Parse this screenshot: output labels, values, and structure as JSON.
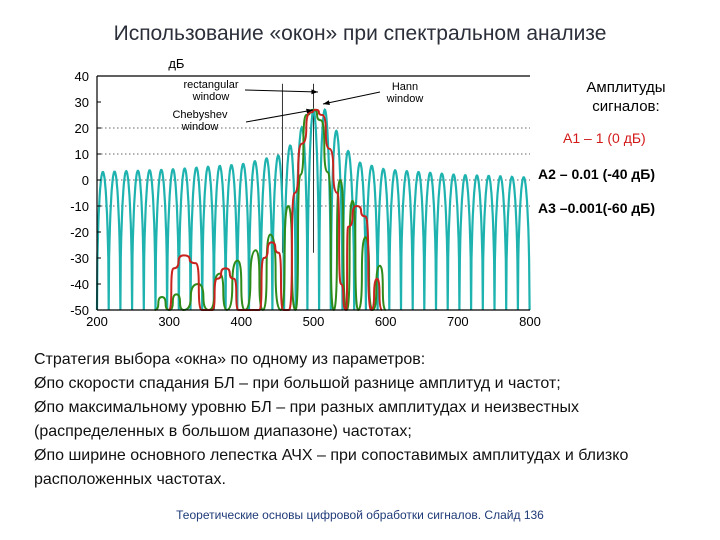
{
  "slide": {
    "title": "Использование «окон» при спектральном анализе",
    "footer": "Теоретические основы цифровой обработки сигналов.  Слайд  136"
  },
  "chart_data": {
    "type": "line",
    "ylabel": "дБ",
    "xlim": [
      200,
      800
    ],
    "ylim": [
      -50,
      40
    ],
    "x_ticks": [
      "200",
      "300",
      "400",
      "500",
      "600",
      "700",
      "800"
    ],
    "y_ticks": [
      "40",
      "30",
      "20",
      "10",
      "0",
      "-10",
      "-20",
      "-30",
      "-40",
      "-50"
    ],
    "grid": "dotted y-lines",
    "annotations": {
      "rectangular": [
        "rectangular",
        "window"
      ],
      "chebyshev": [
        "Chebyshev",
        "window"
      ],
      "hann": [
        "Hann",
        "window"
      ]
    },
    "series": [
      {
        "name": "rectangular window",
        "color": "#1fb3b0",
        "sidelobe_ceiling": [
          [
            200,
            3
          ],
          [
            300,
            4
          ],
          [
            400,
            6
          ],
          [
            460,
            10
          ],
          [
            490,
            23
          ],
          [
            500,
            27
          ],
          [
            508,
            29
          ],
          [
            520,
            26
          ],
          [
            540,
            14
          ],
          [
            560,
            7
          ],
          [
            600,
            4
          ],
          [
            700,
            2
          ],
          [
            800,
            1
          ]
        ]
      },
      {
        "name": "Chebyshev window",
        "color": "#2e8b1a",
        "points": [
          [
            280,
            -50
          ],
          [
            290,
            -45
          ],
          [
            300,
            -50
          ],
          [
            310,
            -44
          ],
          [
            320,
            -50
          ],
          [
            340,
            -40
          ],
          [
            355,
            -50
          ],
          [
            370,
            -36
          ],
          [
            380,
            -50
          ],
          [
            395,
            -31
          ],
          [
            405,
            -50
          ],
          [
            420,
            -27
          ],
          [
            430,
            -50
          ],
          [
            440,
            -21
          ],
          [
            455,
            -50
          ],
          [
            465,
            -10
          ],
          [
            475,
            -50
          ],
          [
            482,
            2
          ],
          [
            490,
            25
          ],
          [
            500,
            27
          ],
          [
            510,
            23
          ],
          [
            520,
            3
          ],
          [
            528,
            -50
          ],
          [
            537,
            0
          ],
          [
            546,
            -50
          ],
          [
            554,
            -8
          ],
          [
            562,
            -50
          ],
          [
            572,
            -22
          ],
          [
            582,
            -50
          ],
          [
            592,
            -33
          ],
          [
            600,
            -50
          ]
        ]
      },
      {
        "name": "Hann window",
        "color": "#c8231e",
        "points": [
          [
            300,
            -50
          ],
          [
            306,
            -34
          ],
          [
            320,
            -29
          ],
          [
            337,
            -32
          ],
          [
            345,
            -50
          ],
          [
            360,
            -50
          ],
          [
            366,
            -38
          ],
          [
            378,
            -34
          ],
          [
            390,
            -38
          ],
          [
            396,
            -50
          ],
          [
            425,
            -50
          ],
          [
            431,
            -30
          ],
          [
            442,
            -24
          ],
          [
            452,
            -28
          ],
          [
            458,
            -50
          ],
          [
            466,
            -50
          ],
          [
            474,
            -5
          ],
          [
            484,
            14
          ],
          [
            496,
            26
          ],
          [
            503,
            27
          ],
          [
            512,
            25
          ],
          [
            522,
            12
          ],
          [
            533,
            -5
          ],
          [
            538,
            -40
          ],
          [
            545,
            -50
          ],
          [
            548,
            -18
          ],
          [
            560,
            -10
          ],
          [
            572,
            -14
          ],
          [
            580,
            -50
          ],
          [
            588,
            -38
          ],
          [
            595,
            -50
          ]
        ]
      }
    ],
    "markers": {
      "vertical_at": [
        457,
        500
      ]
    }
  },
  "side": {
    "heading": [
      "Амплитуды",
      "сигналов:"
    ],
    "a1": "А1 – 1 (0 дБ)",
    "a2": "А2 – 0.01 (-40 дБ)",
    "a3": "А3 –0.001(-60 дБ)"
  },
  "content": {
    "intro": "Стратегия выбора «окна» по одному из параметров:",
    "bullets": [
      "по скорости спадания БЛ – при большой разнице амплитуд и частот;",
      "по максимальному уровню БЛ – при разных амплитудах и неизвестных (распределенных в большом диапазоне) частотах;",
      "по ширине основного лепестка АЧХ – при сопоставимых амплитудах и близко расположенных частотах."
    ],
    "bullet_glyph": "Ø"
  }
}
